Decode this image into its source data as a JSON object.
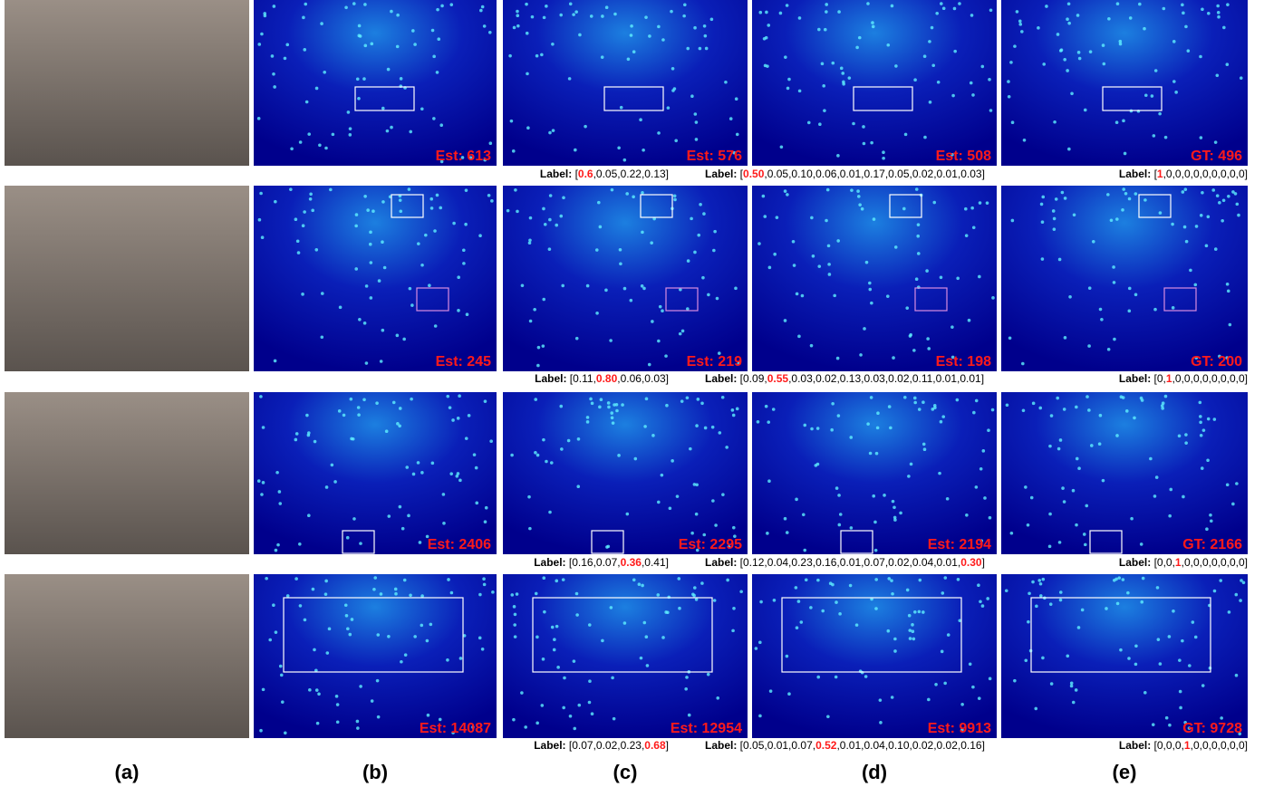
{
  "columns": [
    "(a)",
    "(b)",
    "(c)",
    "(d)",
    "(e)"
  ],
  "rows": [
    {
      "counts": [
        "Est: 613",
        "Est: 576",
        "Est: 508",
        "GT: 496"
      ],
      "labels": [
        [
          {
            "text": "Label:",
            "style": "bold"
          },
          {
            "text": " ["
          },
          {
            "text": "0.6",
            "style": "red"
          },
          {
            "text": ",0.05,0.22,0.13]"
          }
        ],
        [
          {
            "text": "Label:",
            "style": "bold"
          },
          {
            "text": " ["
          },
          {
            "text": "0.50",
            "style": "red"
          },
          {
            "text": ",0.05,0.10,0.06,0.01,0.17,0.05,0.02,0.01,0.03]"
          }
        ],
        [
          {
            "text": "Label:",
            "style": "bold"
          },
          {
            "text": " ["
          },
          {
            "text": "1",
            "style": "red"
          },
          {
            "text": ",0,0,0,0,0,0,0,0,0]"
          }
        ]
      ]
    },
    {
      "counts": [
        "Est: 245",
        "Est: 219",
        "Est: 198",
        "GT: 200"
      ],
      "labels": [
        [
          {
            "text": "Label:",
            "style": "bold"
          },
          {
            "text": " [0.11,"
          },
          {
            "text": "0.80",
            "style": "red"
          },
          {
            "text": ",0.06,0.03]"
          }
        ],
        [
          {
            "text": "Label:",
            "style": "bold"
          },
          {
            "text": " [0.09,"
          },
          {
            "text": "0.55",
            "style": "red"
          },
          {
            "text": ",0.03,0.02,0.13,0.03,0.02,0.11,0.01,0.01]"
          }
        ],
        [
          {
            "text": "Label:",
            "style": "bold"
          },
          {
            "text": " [0,"
          },
          {
            "text": "1",
            "style": "red"
          },
          {
            "text": ",0,0,0,0,0,0,0,0]"
          }
        ]
      ]
    },
    {
      "counts": [
        "Est: 2406",
        "Est: 2295",
        "Est: 2194",
        "GT: 2166"
      ],
      "labels": [
        [
          {
            "text": "Label:",
            "style": "bold"
          },
          {
            "text": " [0.16,0.07,"
          },
          {
            "text": "0.36",
            "style": "red"
          },
          {
            "text": ",0.41]"
          }
        ],
        [
          {
            "text": "Label:",
            "style": "bold"
          },
          {
            "text": " [0.12,0.04,0.23,0.16,0.01,0.07,0.02,0.04,0.01,"
          },
          {
            "text": "0.30",
            "style": "red"
          },
          {
            "text": "]"
          }
        ],
        [
          {
            "text": "Label:",
            "style": "bold"
          },
          {
            "text": " [0,0,"
          },
          {
            "text": "1",
            "style": "red"
          },
          {
            "text": ",0,0,0,0,0,0,0]"
          }
        ]
      ]
    },
    {
      "counts": [
        "Est: 14087",
        "Est: 12954",
        "Est: 9913",
        "GT: 9728"
      ],
      "labels": [
        [
          {
            "text": "Label:",
            "style": "bold"
          },
          {
            "text": " [0.07,0.02,0.23,"
          },
          {
            "text": "0.68",
            "style": "red"
          },
          {
            "text": "]"
          }
        ],
        [
          {
            "text": "Label:",
            "style": "bold"
          },
          {
            "text": " [0.05,0.01,0.07,"
          },
          {
            "text": "0.52",
            "style": "red"
          },
          {
            "text": ",0.01,0.04,0.10,0.02,0.02,0.16]"
          }
        ],
        [
          {
            "text": "Label:",
            "style": "bold"
          },
          {
            "text": " [0,0,0,"
          },
          {
            "text": "1",
            "style": "red"
          },
          {
            "text": ",0,0,0,0,0,0]"
          }
        ]
      ]
    }
  ]
}
